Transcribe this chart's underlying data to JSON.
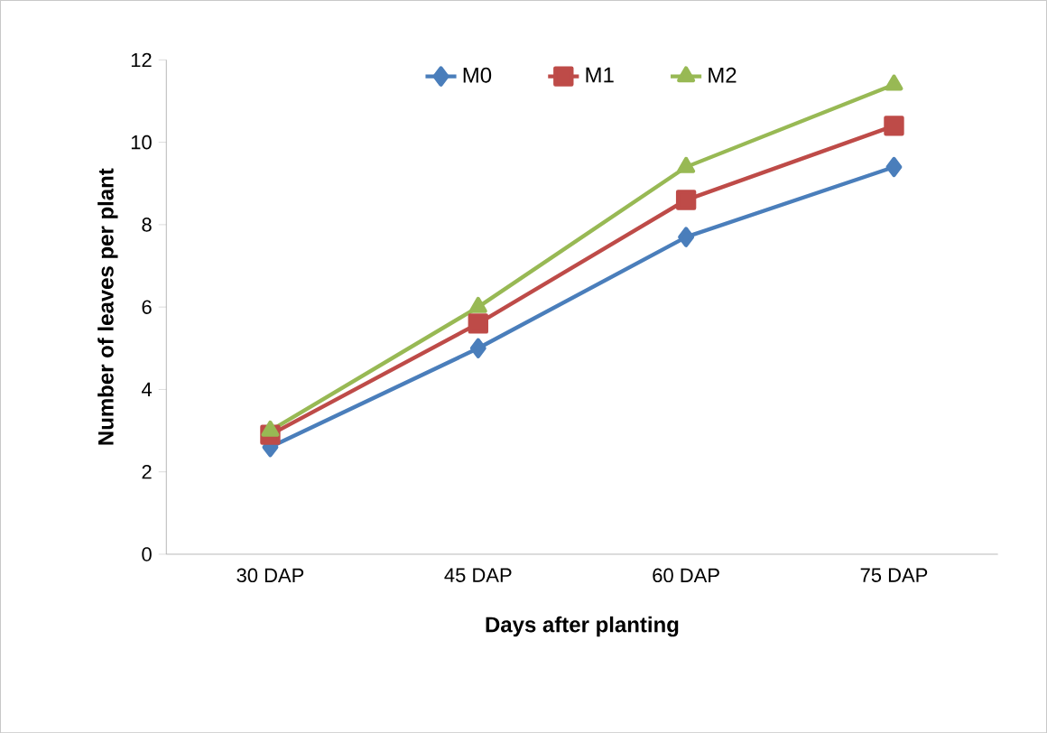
{
  "chart_data": {
    "type": "line",
    "xlabel": "Days after planting",
    "ylabel": "Number of leaves per plant",
    "categories": [
      "30 DAP",
      "45 DAP",
      "60 DAP",
      "75 DAP"
    ],
    "series": [
      {
        "name": "M0",
        "color": "#4a7ebb",
        "values": [
          2.6,
          5.0,
          7.7,
          9.4
        ],
        "marker": "diamond"
      },
      {
        "name": "M1",
        "color": "#be4b48",
        "values": [
          2.9,
          5.6,
          8.6,
          10.4
        ],
        "marker": "square"
      },
      {
        "name": "M2",
        "color": "#98b954",
        "values": [
          3.0,
          6.0,
          9.4,
          11.4
        ],
        "marker": "triangle"
      }
    ],
    "ylim": [
      0,
      12
    ],
    "yticks": [
      0,
      2,
      4,
      6,
      8,
      10,
      12
    ],
    "grid": false,
    "legend": "top"
  }
}
